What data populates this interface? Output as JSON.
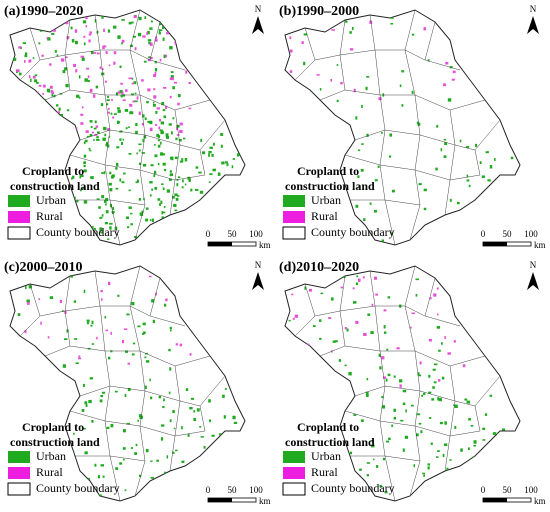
{
  "panels": [
    {
      "title": "(a)1990–2020",
      "north": "N",
      "legend": {
        "title": [
          "Cropland to",
          "construction land"
        ],
        "items": [
          "Urban",
          "Rural",
          "County boundary"
        ]
      },
      "scale": [
        "0",
        "50",
        "100",
        "km"
      ]
    },
    {
      "title": "(b)1990–2000",
      "north": "N",
      "legend": {
        "title": [
          "Cropland to",
          "construction land"
        ],
        "items": [
          "Urban",
          "Rural",
          "County boundary"
        ]
      },
      "scale": [
        "0",
        "50",
        "100",
        "km"
      ]
    },
    {
      "title": "(c)2000–2010",
      "north": "N",
      "legend": {
        "title": [
          "Cropland to",
          "construction land"
        ],
        "items": [
          "Urban",
          "Rural",
          "County boundary"
        ]
      },
      "scale": [
        "0",
        "50",
        "100",
        "km"
      ]
    },
    {
      "title": "(d)2010–2020",
      "north": "N",
      "legend": {
        "title": [
          "Cropland to",
          "construction land"
        ],
        "items": [
          "Urban",
          "Rural",
          "County boundary"
        ]
      },
      "scale": [
        "0",
        "50",
        "100",
        "km"
      ]
    }
  ]
}
